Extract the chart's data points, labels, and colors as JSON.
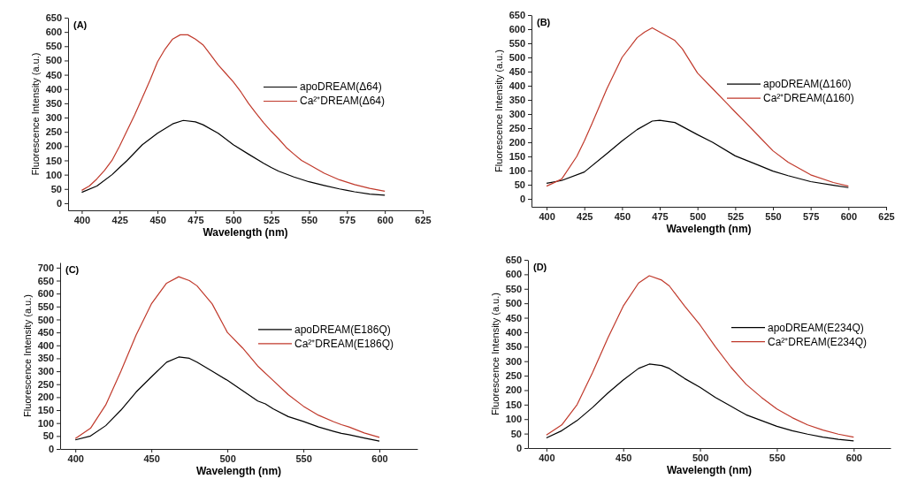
{
  "chart_data": [
    {
      "type": "line",
      "title": "(A)",
      "xlabel": "Wavelength (nm)",
      "ylabel": "Fluorescence Intensity (a.u.)",
      "xlim": [
        391,
        625
      ],
      "xticks": [
        400,
        425,
        450,
        475,
        500,
        525,
        550,
        575,
        600,
        625
      ],
      "ylim": [
        -25,
        650
      ],
      "yticks": [
        0,
        50,
        100,
        150,
        200,
        250,
        300,
        350,
        400,
        450,
        500,
        550,
        600,
        650
      ],
      "legend": "right",
      "marker": "none",
      "line_style": "solid",
      "grid": false,
      "series": [
        {
          "name": "apoDREAM(Δ64)",
          "color": "#000000",
          "x": [
            400,
            410,
            420,
            425,
            430,
            440,
            450,
            460,
            467,
            475,
            480,
            490,
            500,
            510,
            520,
            525,
            530,
            540,
            550,
            560,
            570,
            575,
            580,
            590,
            600
          ],
          "values": [
            38,
            60,
            100,
            125,
            150,
            205,
            245,
            278,
            290,
            285,
            275,
            245,
            205,
            172,
            140,
            125,
            112,
            92,
            75,
            62,
            50,
            45,
            40,
            32,
            28
          ]
        },
        {
          "name": "Ca²⁺DREAM(Δ64)",
          "color": "#c0392b",
          "x": [
            400,
            405,
            410,
            415,
            420,
            425,
            430,
            435,
            440,
            445,
            450,
            455,
            460,
            465,
            470,
            475,
            480,
            485,
            490,
            495,
            500,
            505,
            510,
            515,
            520,
            525,
            530,
            535,
            540,
            545,
            550,
            560,
            570,
            580,
            590,
            600
          ],
          "values": [
            45,
            60,
            85,
            115,
            150,
            200,
            255,
            310,
            370,
            430,
            495,
            540,
            575,
            590,
            590,
            575,
            555,
            520,
            485,
            455,
            425,
            390,
            350,
            315,
            282,
            252,
            225,
            195,
            172,
            150,
            135,
            105,
            82,
            65,
            52,
            42
          ]
        }
      ]
    },
    {
      "type": "line",
      "title": "(B)",
      "xlabel": "Wavelength (nm)",
      "ylabel": "Fluorescence Intensity (a.u.)",
      "xlim": [
        390,
        625
      ],
      "xticks": [
        400,
        425,
        450,
        475,
        500,
        525,
        550,
        575,
        600,
        625
      ],
      "ylim": [
        -28,
        650
      ],
      "yticks": [
        0,
        50,
        100,
        150,
        200,
        250,
        300,
        350,
        400,
        450,
        500,
        550,
        600,
        650
      ],
      "legend": "right",
      "marker": "none",
      "line_style": "solid",
      "grid": false,
      "series": [
        {
          "name": "apoDREAM(Δ160)",
          "color": "#000000",
          "x": [
            400,
            410,
            425,
            440,
            450,
            460,
            470,
            475,
            485,
            500,
            510,
            525,
            540,
            550,
            560,
            575,
            590,
            600
          ],
          "values": [
            55,
            65,
            95,
            160,
            205,
            245,
            275,
            278,
            270,
            227,
            200,
            152,
            120,
            98,
            82,
            61,
            48,
            40
          ]
        },
        {
          "name": "Ca²⁺DREAM(Δ160)",
          "color": "#c0392b",
          "x": [
            400,
            410,
            420,
            425,
            430,
            440,
            450,
            460,
            465,
            470,
            475,
            485,
            490,
            500,
            510,
            520,
            525,
            530,
            540,
            550,
            560,
            575,
            590,
            600
          ],
          "values": [
            45,
            70,
            150,
            205,
            265,
            390,
            500,
            570,
            590,
            605,
            590,
            560,
            530,
            445,
            390,
            335,
            307,
            280,
            225,
            170,
            130,
            85,
            58,
            45
          ]
        }
      ]
    },
    {
      "type": "line",
      "title": "(C)",
      "xlabel": "Wavelength (nm)",
      "ylabel": "Fluorescence Intensity (a.u.)",
      "xlim": [
        390,
        625
      ],
      "xticks": [
        400,
        450,
        500,
        550,
        600
      ],
      "ylim": [
        0,
        720
      ],
      "yticks": [
        0,
        50,
        100,
        150,
        200,
        250,
        300,
        350,
        400,
        450,
        500,
        550,
        600,
        650,
        700
      ],
      "legend": "right",
      "marker": "none",
      "line_style": "solid",
      "grid": false,
      "series": [
        {
          "name": "apoDREAM(E186Q)",
          "color": "#000000",
          "x": [
            400,
            410,
            420,
            430,
            440,
            450,
            460,
            468,
            475,
            480,
            490,
            500,
            510,
            520,
            525,
            530,
            540,
            550,
            560,
            570,
            575,
            580,
            590,
            600
          ],
          "values": [
            35,
            50,
            90,
            150,
            220,
            278,
            335,
            355,
            350,
            335,
            300,
            265,
            225,
            185,
            174,
            155,
            125,
            106,
            85,
            68,
            60,
            55,
            42,
            30
          ]
        },
        {
          "name": "Ca²⁺DREAM(E186Q)",
          "color": "#c0392b",
          "x": [
            400,
            410,
            420,
            430,
            440,
            450,
            460,
            468,
            475,
            480,
            490,
            500,
            510,
            520,
            530,
            540,
            550,
            560,
            570,
            575,
            580,
            590,
            600
          ],
          "values": [
            40,
            80,
            170,
            300,
            440,
            560,
            640,
            665,
            650,
            630,
            560,
            450,
            390,
            320,
            265,
            210,
            165,
            130,
            105,
            94,
            85,
            62,
            45
          ]
        }
      ]
    },
    {
      "type": "line",
      "title": "(D)",
      "xlabel": "Wavelength (nm)",
      "ylabel": "Fluorescence Intensity (a.u.)",
      "xlim": [
        388,
        624
      ],
      "xticks": [
        400,
        450,
        500,
        550,
        600
      ],
      "ylim": [
        0,
        650
      ],
      "yticks": [
        0,
        50,
        100,
        150,
        200,
        250,
        300,
        350,
        400,
        450,
        500,
        550,
        600,
        650
      ],
      "legend": "right",
      "marker": "none",
      "line_style": "solid",
      "grid": false,
      "series": [
        {
          "name": "apoDREAM(E234Q)",
          "color": "#000000",
          "x": [
            400,
            410,
            420,
            430,
            440,
            450,
            460,
            467,
            475,
            480,
            490,
            500,
            510,
            520,
            525,
            530,
            540,
            550,
            560,
            570,
            580,
            590,
            600
          ],
          "values": [
            35,
            60,
            95,
            140,
            190,
            235,
            275,
            290,
            285,
            275,
            240,
            210,
            175,
            145,
            130,
            115,
            95,
            75,
            60,
            48,
            38,
            30,
            25
          ]
        },
        {
          "name": "Ca²⁺DREAM(E234Q)",
          "color": "#c0392b",
          "x": [
            400,
            410,
            420,
            430,
            440,
            450,
            460,
            467,
            475,
            480,
            490,
            500,
            510,
            520,
            525,
            530,
            540,
            550,
            560,
            570,
            580,
            590,
            600
          ],
          "values": [
            45,
            80,
            150,
            260,
            380,
            490,
            570,
            595,
            580,
            560,
            490,
            425,
            350,
            280,
            250,
            220,
            175,
            135,
            105,
            80,
            62,
            48,
            38
          ]
        }
      ]
    }
  ]
}
